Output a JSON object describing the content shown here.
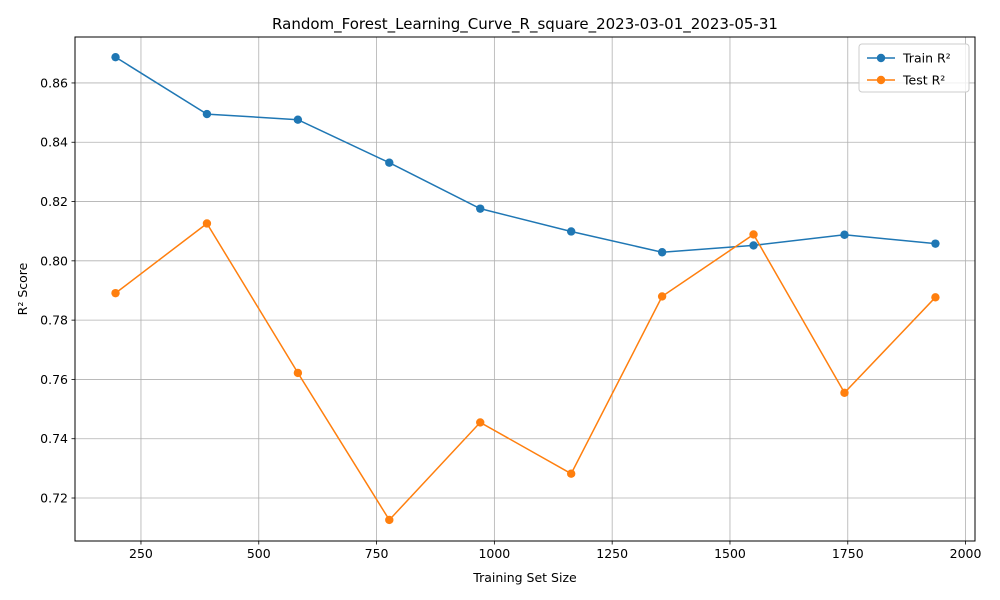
{
  "chart_data": {
    "type": "line",
    "title": "Random_Forest_Learning_Curve_R_square_2023-03-01_2023-05-31",
    "xlabel": "Training Set Size",
    "ylabel": "R² Score",
    "xlim": [
      110,
      2020
    ],
    "ylim": [
      0.7055,
      0.8755
    ],
    "xticks": [
      250,
      500,
      750,
      1000,
      1250,
      1500,
      1750,
      2000
    ],
    "yticks": [
      0.72,
      0.74,
      0.76,
      0.78,
      0.8,
      0.82,
      0.84,
      0.86
    ],
    "grid": true,
    "legend": "top-right",
    "x": [
      196,
      390,
      583,
      777,
      970,
      1163,
      1356,
      1550,
      1743,
      1936
    ],
    "series": [
      {
        "name": "Train R²",
        "color": "#1f77b4",
        "values": [
          0.8687,
          0.8495,
          0.8476,
          0.8331,
          0.8176,
          0.8099,
          0.8029,
          0.8052,
          0.8088,
          0.8058
        ]
      },
      {
        "name": "Test R²",
        "color": "#ff7f0e",
        "values": [
          0.7891,
          0.8126,
          0.7622,
          0.7126,
          0.7455,
          0.7282,
          0.788,
          0.8089,
          0.7555,
          0.7877
        ]
      }
    ]
  }
}
